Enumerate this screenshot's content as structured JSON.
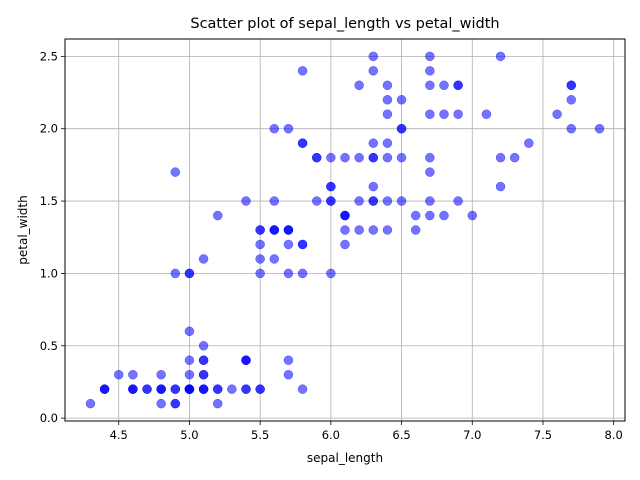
{
  "chart_data": {
    "type": "scatter",
    "title": "Scatter plot of sepal_length vs petal_width",
    "xlabel": "sepal_length",
    "ylabel": "petal_width",
    "xlim": [
      4.12,
      8.08
    ],
    "ylim": [
      -0.02,
      2.62
    ],
    "xticks": [
      4.5,
      5.0,
      5.5,
      6.0,
      6.5,
      7.0,
      7.5,
      8.0
    ],
    "xtick_labels": [
      "4.5",
      "5.0",
      "5.5",
      "6.0",
      "6.5",
      "7.0",
      "7.5",
      "8.0"
    ],
    "yticks": [
      0.0,
      0.5,
      1.0,
      1.5,
      2.0,
      2.5
    ],
    "ytick_labels": [
      "0.0",
      "0.5",
      "1.0",
      "1.5",
      "2.0",
      "2.5"
    ],
    "grid": true,
    "marker_color": "#0000ff",
    "marker_alpha": 0.55,
    "points": [
      [
        5.1,
        0.2
      ],
      [
        4.9,
        0.2
      ],
      [
        4.7,
        0.2
      ],
      [
        4.6,
        0.2
      ],
      [
        5.0,
        0.2
      ],
      [
        5.4,
        0.4
      ],
      [
        4.6,
        0.3
      ],
      [
        5.0,
        0.2
      ],
      [
        4.4,
        0.2
      ],
      [
        4.9,
        0.1
      ],
      [
        5.4,
        0.2
      ],
      [
        4.8,
        0.2
      ],
      [
        4.8,
        0.1
      ],
      [
        4.3,
        0.1
      ],
      [
        5.8,
        0.2
      ],
      [
        5.7,
        0.4
      ],
      [
        5.4,
        0.4
      ],
      [
        5.1,
        0.3
      ],
      [
        5.7,
        0.3
      ],
      [
        5.1,
        0.3
      ],
      [
        5.4,
        0.2
      ],
      [
        5.1,
        0.4
      ],
      [
        4.6,
        0.2
      ],
      [
        5.1,
        0.5
      ],
      [
        4.8,
        0.2
      ],
      [
        5.0,
        0.2
      ],
      [
        5.0,
        0.4
      ],
      [
        5.2,
        0.2
      ],
      [
        5.2,
        0.2
      ],
      [
        4.7,
        0.2
      ],
      [
        4.8,
        0.2
      ],
      [
        5.4,
        0.4
      ],
      [
        5.2,
        0.1
      ],
      [
        5.5,
        0.2
      ],
      [
        4.9,
        0.2
      ],
      [
        5.0,
        0.2
      ],
      [
        5.5,
        0.2
      ],
      [
        4.9,
        0.1
      ],
      [
        4.4,
        0.2
      ],
      [
        5.1,
        0.2
      ],
      [
        5.0,
        0.3
      ],
      [
        4.5,
        0.3
      ],
      [
        4.4,
        0.2
      ],
      [
        5.0,
        0.6
      ],
      [
        5.1,
        0.4
      ],
      [
        4.8,
        0.3
      ],
      [
        5.1,
        0.2
      ],
      [
        4.6,
        0.2
      ],
      [
        5.3,
        0.2
      ],
      [
        5.0,
        0.2
      ],
      [
        7.0,
        1.4
      ],
      [
        6.4,
        1.5
      ],
      [
        6.9,
        1.5
      ],
      [
        5.5,
        1.3
      ],
      [
        6.5,
        1.5
      ],
      [
        5.7,
        1.3
      ],
      [
        6.3,
        1.6
      ],
      [
        4.9,
        1.0
      ],
      [
        6.6,
        1.3
      ],
      [
        5.2,
        1.4
      ],
      [
        5.0,
        1.0
      ],
      [
        5.9,
        1.5
      ],
      [
        6.0,
        1.0
      ],
      [
        6.1,
        1.4
      ],
      [
        5.6,
        1.3
      ],
      [
        6.7,
        1.4
      ],
      [
        5.6,
        1.5
      ],
      [
        5.8,
        1.0
      ],
      [
        6.2,
        1.5
      ],
      [
        5.6,
        1.1
      ],
      [
        5.9,
        1.8
      ],
      [
        6.1,
        1.3
      ],
      [
        6.3,
        1.5
      ],
      [
        6.1,
        1.2
      ],
      [
        6.4,
        1.3
      ],
      [
        6.6,
        1.4
      ],
      [
        6.8,
        1.4
      ],
      [
        6.7,
        1.7
      ],
      [
        6.0,
        1.5
      ],
      [
        5.7,
        1.0
      ],
      [
        5.5,
        1.1
      ],
      [
        5.5,
        1.0
      ],
      [
        5.8,
        1.2
      ],
      [
        6.0,
        1.6
      ],
      [
        5.4,
        1.5
      ],
      [
        6.0,
        1.6
      ],
      [
        6.7,
        1.5
      ],
      [
        6.3,
        1.3
      ],
      [
        5.6,
        1.3
      ],
      [
        5.5,
        1.3
      ],
      [
        5.5,
        1.2
      ],
      [
        6.1,
        1.4
      ],
      [
        5.8,
        1.2
      ],
      [
        5.0,
        1.0
      ],
      [
        5.6,
        1.3
      ],
      [
        5.7,
        1.2
      ],
      [
        5.7,
        1.3
      ],
      [
        6.2,
        1.3
      ],
      [
        5.1,
        1.1
      ],
      [
        5.7,
        1.3
      ],
      [
        6.3,
        2.5
      ],
      [
        5.8,
        1.9
      ],
      [
        7.1,
        2.1
      ],
      [
        6.3,
        1.8
      ],
      [
        6.5,
        2.2
      ],
      [
        7.6,
        2.1
      ],
      [
        4.9,
        1.7
      ],
      [
        7.3,
        1.8
      ],
      [
        6.7,
        1.8
      ],
      [
        7.2,
        2.5
      ],
      [
        6.5,
        2.0
      ],
      [
        6.4,
        1.9
      ],
      [
        6.8,
        2.1
      ],
      [
        5.7,
        2.0
      ],
      [
        5.8,
        2.4
      ],
      [
        6.4,
        2.3
      ],
      [
        6.5,
        1.8
      ],
      [
        7.7,
        2.2
      ],
      [
        7.7,
        2.3
      ],
      [
        6.0,
        1.5
      ],
      [
        6.9,
        2.3
      ],
      [
        5.6,
        2.0
      ],
      [
        7.7,
        2.0
      ],
      [
        6.3,
        1.8
      ],
      [
        6.7,
        2.1
      ],
      [
        7.2,
        1.8
      ],
      [
        6.2,
        1.8
      ],
      [
        6.1,
        1.8
      ],
      [
        6.4,
        2.1
      ],
      [
        7.2,
        1.6
      ],
      [
        7.4,
        1.9
      ],
      [
        7.9,
        2.0
      ],
      [
        6.4,
        2.2
      ],
      [
        6.3,
        1.5
      ],
      [
        6.1,
        1.4
      ],
      [
        7.7,
        2.3
      ],
      [
        6.3,
        2.4
      ],
      [
        6.4,
        1.8
      ],
      [
        6.0,
        1.8
      ],
      [
        6.9,
        2.1
      ],
      [
        6.7,
        2.4
      ],
      [
        6.9,
        2.3
      ],
      [
        5.8,
        1.9
      ],
      [
        6.8,
        2.3
      ],
      [
        6.7,
        2.5
      ],
      [
        6.7,
        2.3
      ],
      [
        6.3,
        1.9
      ],
      [
        6.5,
        2.0
      ],
      [
        6.2,
        2.3
      ],
      [
        5.9,
        1.8
      ]
    ]
  }
}
